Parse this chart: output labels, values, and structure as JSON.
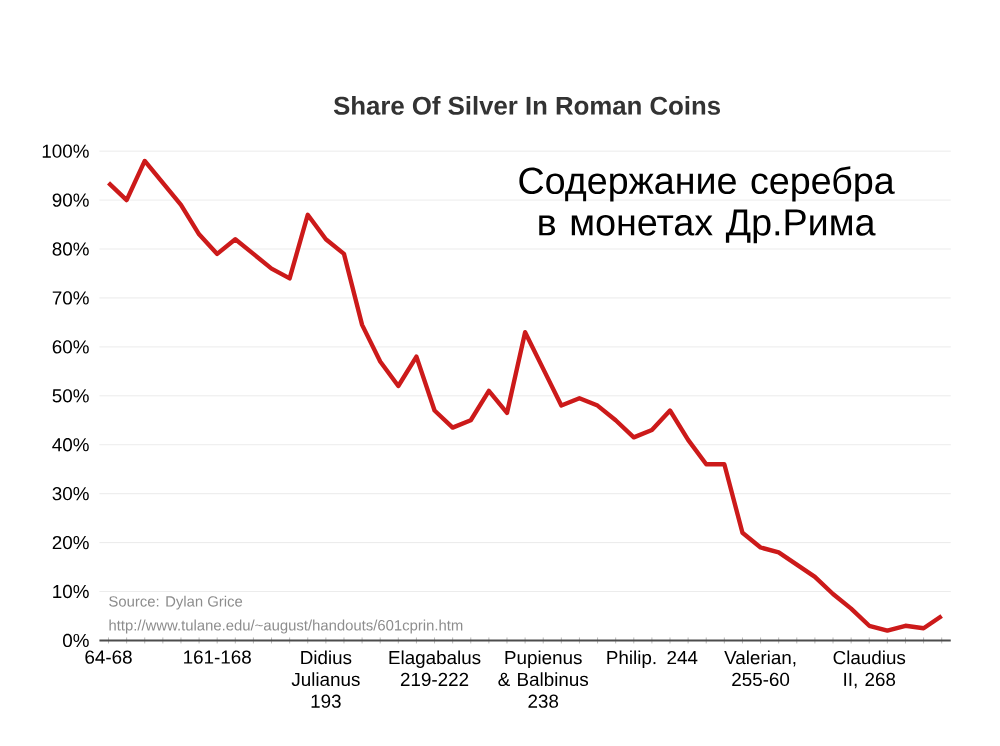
{
  "chart_data": {
    "type": "line",
    "title": "Share Of Silver In Roman Coins",
    "categories": [
      "64-68",
      null,
      null,
      null,
      null,
      null,
      "161-168",
      null,
      null,
      null,
      null,
      null,
      "Didius Julianus 193",
      null,
      null,
      null,
      null,
      null,
      "Elagabalus 219-222",
      null,
      null,
      null,
      null,
      null,
      "Pupienus & Balbinus 238",
      null,
      null,
      null,
      null,
      null,
      "Philip. 244",
      null,
      null,
      null,
      null,
      null,
      "Valerian, 255-60",
      null,
      null,
      null,
      null,
      null,
      "Claudius II, 268",
      null,
      null,
      null,
      null
    ],
    "values": [
      93.5,
      90,
      98,
      93.5,
      89,
      83,
      79,
      82,
      79,
      76,
      74,
      87,
      82,
      79,
      64.5,
      57,
      52,
      58,
      47,
      43.5,
      45,
      51,
      46.5,
      63,
      55.5,
      48,
      49.5,
      48,
      45,
      41.5,
      43,
      47,
      41,
      36,
      36,
      22,
      19,
      18,
      15.5,
      13,
      9.5,
      6.5,
      3,
      2,
      3,
      2.5,
      5
    ],
    "color": "#cc1a1a",
    "ylim": [
      0,
      100
    ],
    "yticks": [
      {
        "value": 0,
        "label": "0%"
      },
      {
        "value": 10,
        "label": "10%"
      },
      {
        "value": 20,
        "label": "20%"
      },
      {
        "value": 30,
        "label": "30%"
      },
      {
        "value": 40,
        "label": "40%"
      },
      {
        "value": 50,
        "label": "50%"
      },
      {
        "value": 60,
        "label": "60%"
      },
      {
        "value": 70,
        "label": "70%"
      },
      {
        "value": 80,
        "label": "80%"
      },
      {
        "value": 90,
        "label": "90%"
      },
      {
        "value": 100,
        "label": "100%"
      }
    ],
    "grid": "y",
    "marker": "none",
    "line_style": "solid",
    "annotations": [
      "Содержание серебра в монетах Др.Рима",
      "Source: Dylan Grice",
      "http://www.tulane.edu/~august/handouts/601cprin.htm"
    ]
  }
}
